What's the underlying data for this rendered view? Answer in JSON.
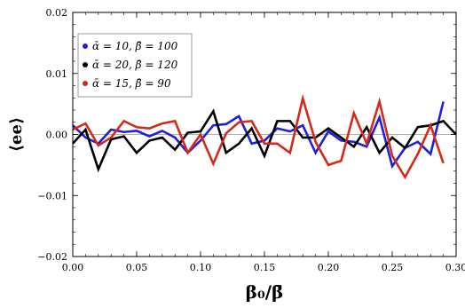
{
  "chart_data": {
    "type": "line",
    "xlabel": "β₀/β̄",
    "ylabel": "⟨ee⟩",
    "xlim": [
      0.0,
      0.3
    ],
    "ylim": [
      -0.02,
      0.02
    ],
    "x_ticks": [
      0.0,
      0.05,
      0.1,
      0.15,
      0.2,
      0.25,
      0.3
    ],
    "x_tick_labels": [
      "0.00",
      "0.05",
      "0.10",
      "0.15",
      "0.20",
      "0.25",
      "0.30"
    ],
    "y_ticks": [
      -0.02,
      -0.01,
      0.0,
      0.01,
      0.02
    ],
    "y_tick_labels": [
      "−0.02",
      "−0.01",
      "0.00",
      "0.01",
      "0.02"
    ],
    "reference_line": 0.0,
    "legend_position": "top-left",
    "series": [
      {
        "name": "ᾱ = 10,   β̄ = 100",
        "color": "#1f1fe0",
        "x": [
          0.0,
          0.01,
          0.02,
          0.03,
          0.04,
          0.05,
          0.06,
          0.07,
          0.08,
          0.09,
          0.1,
          0.11,
          0.12,
          0.13,
          0.14,
          0.15,
          0.16,
          0.17,
          0.18,
          0.19,
          0.2,
          0.21,
          0.22,
          0.23,
          0.24,
          0.25,
          0.26,
          0.27,
          0.28,
          0.29,
          0.3
        ],
        "values": [
          0.0015,
          -0.0005,
          -0.0015,
          0.0008,
          0.0004,
          0.0006,
          -0.0003,
          0.0006,
          -0.0005,
          -0.003,
          -0.001,
          0.0015,
          0.0017,
          0.003,
          -0.0015,
          -0.001,
          0.001,
          0.0005,
          0.0015,
          -0.003,
          0.0005,
          -0.001,
          -0.0012,
          -0.002,
          0.0028,
          -0.0052,
          -0.0022,
          -0.0012,
          -0.0032,
          0.0054,
          null
        ]
      },
      {
        "name": "ᾱ = 20,   β̄ = 120",
        "color": "#000000",
        "x": [
          0.0,
          0.01,
          0.02,
          0.03,
          0.04,
          0.05,
          0.06,
          0.07,
          0.08,
          0.09,
          0.1,
          0.11,
          0.12,
          0.13,
          0.14,
          0.15,
          0.16,
          0.17,
          0.18,
          0.19,
          0.2,
          0.21,
          0.22,
          0.23,
          0.24,
          0.25,
          0.26,
          0.27,
          0.28,
          0.29,
          0.3
        ],
        "values": [
          -0.0015,
          0.0008,
          -0.0057,
          -0.0008,
          -0.0003,
          -0.003,
          -0.001,
          -0.0005,
          -0.0025,
          0.0003,
          0.0005,
          0.0038,
          -0.003,
          -0.0015,
          0.001,
          -0.0035,
          0.0022,
          0.0022,
          -0.0005,
          -0.0005,
          0.001,
          -0.0005,
          -0.002,
          0.0012,
          -0.003,
          -0.0005,
          -0.0022,
          0.0012,
          0.0015,
          0.0022,
          0.0
        ]
      },
      {
        "name": "ᾱ = 15,   β̄ = 90",
        "color": "#d42a1a",
        "x": [
          0.0,
          0.01,
          0.02,
          0.03,
          0.04,
          0.05,
          0.06,
          0.07,
          0.08,
          0.09,
          0.1,
          0.11,
          0.12,
          0.13,
          0.14,
          0.15,
          0.16,
          0.17,
          0.18,
          0.19,
          0.2,
          0.21,
          0.22,
          0.23,
          0.24,
          0.25,
          0.26,
          0.27,
          0.28,
          0.29,
          0.3
        ],
        "values": [
          0.0008,
          0.0018,
          -0.0018,
          -0.0005,
          0.0022,
          0.0012,
          0.001,
          0.0018,
          0.0022,
          -0.003,
          0.0,
          -0.0048,
          0.0002,
          0.002,
          0.0022,
          -0.0015,
          -0.0015,
          -0.003,
          0.0059,
          -0.0012,
          -0.005,
          -0.0043,
          0.0035,
          -0.0015,
          0.0054,
          -0.0035,
          -0.007,
          -0.0032,
          0.0015,
          -0.0047,
          null
        ]
      }
    ]
  }
}
